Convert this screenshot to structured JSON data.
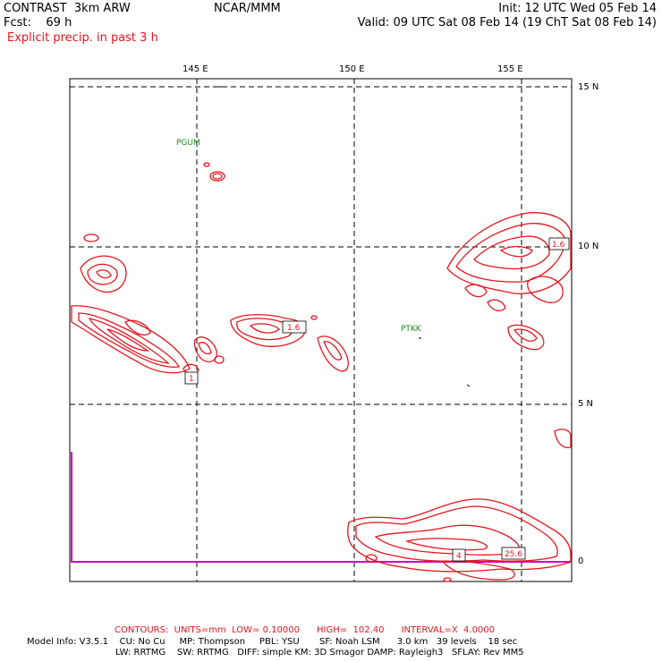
{
  "header": {
    "model": "CONTRAST  3km ARW",
    "fcst": "Fcst:    69 h",
    "field": "Explicit precip. in past 3 h",
    "center": "NCAR/MMM",
    "init": "Init: 12 UTC Wed 05 Feb 14",
    "valid": "Valid: 09 UTC Sat 08 Feb 14 (19 ChT Sat 08 Feb 14)"
  },
  "axes": {
    "lon_labels": [
      "145 E",
      "150 E",
      "155 E"
    ],
    "lat_labels": [
      "15 N",
      "10 N",
      "5 N",
      "0"
    ]
  },
  "stations": [
    "PGUM",
    "PTKK"
  ],
  "contour_labels": [
    "1.6",
    "1.6",
    "1",
    "4",
    "25.6"
  ],
  "footer": {
    "contours": "CONTOURS:  UNITS=mm  LOW= 0.10000      HIGH=  102.40      INTERVAL=X  4.0000",
    "line1": "Model Info: V3.5.1    CU: No Cu     MP: Thompson     PBL: YSU       SF: Noah LSM      3.0 km   39 levels    18 sec",
    "line2": "LW: RRTMG    SW: RRTMG   DIFF: simple KM: 3D Smagor DAMP: Rayleigh3   SFLAY: Rev MM5"
  },
  "colors": {
    "precip_contour": "#e8141e",
    "station": "#1e8c1e",
    "boundary": "#cc00cc"
  }
}
